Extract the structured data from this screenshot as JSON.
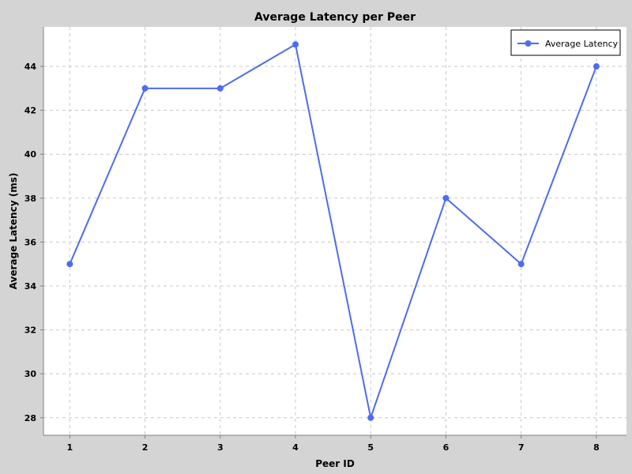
{
  "colors": {
    "background": "#d4d4d4",
    "plot_background": "#ffffff",
    "series": "#4d6cf0",
    "gridline": "#c8c8c8"
  },
  "chart_data": {
    "type": "line",
    "title": "Average Latency per Peer",
    "xlabel": "Peer ID",
    "ylabel": "Average Latency (ms)",
    "x": [
      1,
      2,
      3,
      4,
      5,
      6,
      7,
      8
    ],
    "xlim": [
      0.65,
      8.4
    ],
    "ylim": [
      27.2,
      45.8
    ],
    "yticks": [
      28,
      30,
      32,
      34,
      36,
      38,
      40,
      42,
      44
    ],
    "grid": true,
    "legend_position": "top-right",
    "series": [
      {
        "name": "Average Latency",
        "values": [
          35,
          43,
          43,
          45,
          28,
          38,
          35,
          44
        ],
        "marker": "circle"
      }
    ]
  }
}
